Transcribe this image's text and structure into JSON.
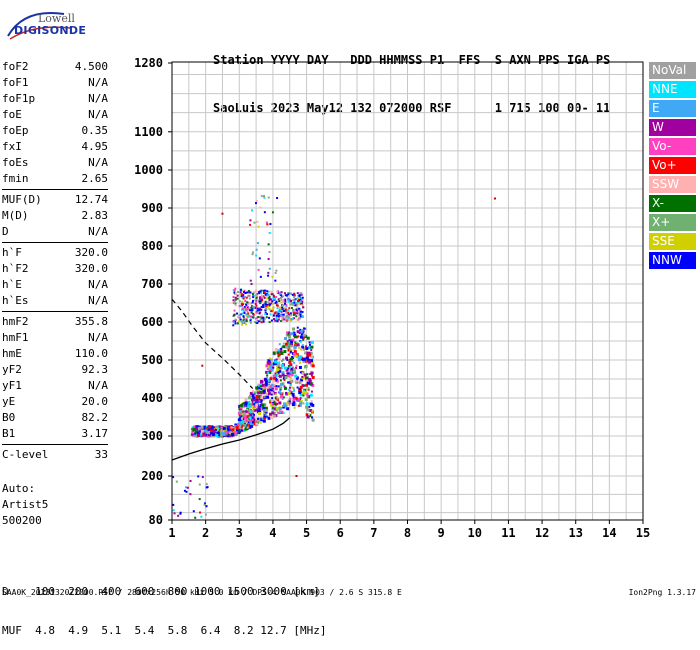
{
  "logo": {
    "line1": "Lowell",
    "line2": "DIGISONDE"
  },
  "header": {
    "line1": "Station YYYY DAY   DDD HHMMSS P1  FFS  S AXN PPS IGA PS",
    "line2": "SaoLuis 2023 May12 132 072000 RSF      1 715 100 00- 11"
  },
  "params": [
    [
      {
        "name": "foF2",
        "value": "4.500"
      },
      {
        "name": "foF1",
        "value": "N/A"
      },
      {
        "name": "foF1p",
        "value": "N/A"
      },
      {
        "name": "foE",
        "value": "N/A"
      },
      {
        "name": "foEp",
        "value": "0.35"
      },
      {
        "name": "fxI",
        "value": "4.95"
      },
      {
        "name": "foEs",
        "value": "N/A"
      },
      {
        "name": "fmin",
        "value": "2.65"
      }
    ],
    [
      {
        "name": "MUF(D)",
        "value": "12.74"
      },
      {
        "name": "M(D)",
        "value": "2.83"
      },
      {
        "name": "D",
        "value": "N/A"
      }
    ],
    [
      {
        "name": "h`F",
        "value": "320.0"
      },
      {
        "name": "h`F2",
        "value": "320.0"
      },
      {
        "name": "h`E",
        "value": "N/A"
      },
      {
        "name": "h`Es",
        "value": "N/A"
      }
    ],
    [
      {
        "name": "hmF2",
        "value": "355.8"
      },
      {
        "name": "hmF1",
        "value": "N/A"
      },
      {
        "name": "hmE",
        "value": "110.0"
      },
      {
        "name": "yF2",
        "value": "92.3"
      },
      {
        "name": "yF1",
        "value": "N/A"
      },
      {
        "name": "yE",
        "value": "20.0"
      },
      {
        "name": "B0",
        "value": "82.2"
      },
      {
        "name": "B1",
        "value": "3.17"
      }
    ],
    [
      {
        "name": "C-level",
        "value": "33"
      }
    ]
  ],
  "auto": {
    "line1": "Auto:",
    "line2": "Artist5",
    "line3": "500200"
  },
  "legend": [
    {
      "label": "NoVal",
      "color": "#a0a0a0"
    },
    {
      "label": "NNE",
      "color": "#00e5ff"
    },
    {
      "label": "E",
      "color": "#3fa9f5"
    },
    {
      "label": "W",
      "color": "#a000a0"
    },
    {
      "label": "Vo-",
      "color": "#ff40c0"
    },
    {
      "label": "Vo+",
      "color": "#ff0000"
    },
    {
      "label": "SSW",
      "color": "#ffb0b0"
    },
    {
      "label": "X-",
      "color": "#007000"
    },
    {
      "label": "X+",
      "color": "#70b070"
    },
    {
      "label": "SSE",
      "color": "#d0d000"
    },
    {
      "label": "NNW",
      "color": "#0000ff"
    }
  ],
  "chart_data": {
    "type": "scatter",
    "title": "",
    "xlabel": "",
    "ylabel": "",
    "x_range": [
      1,
      15
    ],
    "y_range": [
      80,
      1280
    ],
    "x_ticks": [
      1,
      2,
      3,
      4,
      5,
      6,
      7,
      8,
      9,
      10,
      11,
      12,
      13,
      14,
      15
    ],
    "y_ticks": [
      80,
      200,
      300,
      400,
      500,
      600,
      700,
      800,
      900,
      1000,
      1100,
      1280
    ],
    "grid": true,
    "nonlinear_y": true,
    "traces": [
      {
        "name": "O-trace F2 (lower)",
        "freq_range": [
          1.6,
          5.2
        ],
        "height_range": [
          300,
          590
        ]
      },
      {
        "name": "Second hop (upper)",
        "freq_range": [
          2.8,
          4.9
        ],
        "height_range": [
          580,
          760
        ]
      }
    ],
    "stray_points": [
      {
        "x": 10.6,
        "y": 925
      },
      {
        "x": 2.5,
        "y": 885
      },
      {
        "x": 1.9,
        "y": 485
      },
      {
        "x": 4.7,
        "y": 200
      }
    ],
    "profile_curve": {
      "x": [
        1.0,
        1.5,
        2.0,
        2.5,
        3.0,
        3.5,
        4.0,
        4.3,
        4.5
      ],
      "y": [
        240,
        255,
        268,
        280,
        290,
        303,
        318,
        333,
        348
      ]
    },
    "extrapolation_curve": {
      "x": [
        1.0,
        1.3,
        1.6,
        2.0,
        2.5,
        3.0,
        3.4
      ],
      "y": [
        660,
        628,
        590,
        545,
        505,
        462,
        425
      ]
    }
  },
  "dmuf": {
    "line1": "D    100  200  400  600  800 1000 1500 3000 [km]",
    "line2": "MUF  4.8  4.9  5.1  5.4  5.8  6.4  8.2 12.7 [MHz]"
  },
  "footer": {
    "left": "SAA0K_2023132072000.RSF / 280fx256h 50 kHz 5.0 km / DPS-4 SAA0K 903 / 2.6 S 315.8 E",
    "right": "Ion2Png 1.3.17"
  }
}
